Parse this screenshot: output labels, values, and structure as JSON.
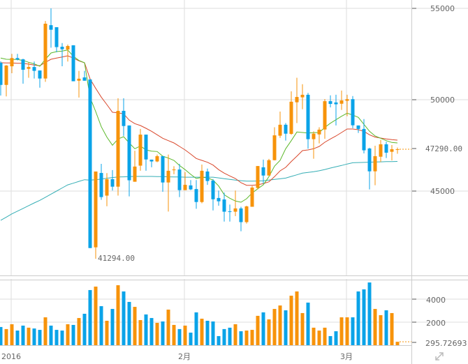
{
  "chart_data": [
    {
      "type": "candlestick",
      "colors": {
        "up": "#f7930a",
        "down": "#0aa3e8",
        "ma_short": "#5cb82a",
        "ma_mid": "#d9472b",
        "ma_long": "#35aeb5"
      },
      "ylim": [
        39000,
        55400
      ],
      "y_ticks": [
        "55000",
        "50000",
        "45000"
      ],
      "x_tick_labels": [
        {
          "index": 2,
          "label": "2016"
        },
        {
          "index": 33,
          "label": "2月"
        },
        {
          "index": 62,
          "label": "3月"
        }
      ],
      "grid": true,
      "last_price_label": "47290.00",
      "last_price": 47290,
      "min_label": "41294.00",
      "min_index": 17,
      "ohlc": [
        [
          52020,
          52100,
          50230,
          50810
        ],
        [
          50810,
          51900,
          50180,
          51870
        ],
        [
          51830,
          52510,
          51450,
          52280
        ],
        [
          52280,
          52510,
          52150,
          52200
        ],
        [
          52210,
          52240,
          50880,
          51640
        ],
        [
          51690,
          52050,
          51200,
          51790
        ],
        [
          51790,
          52090,
          51160,
          51580
        ],
        [
          51600,
          51600,
          50660,
          51160
        ],
        [
          51160,
          54310,
          50980,
          54160
        ],
        [
          54080,
          55000,
          52850,
          53830
        ],
        [
          53970,
          53970,
          52600,
          52880
        ],
        [
          52900,
          53100,
          51830,
          52760
        ],
        [
          52750,
          53020,
          52090,
          52940
        ],
        [
          52980,
          52980,
          51010,
          51010
        ],
        [
          51040,
          51580,
          50120,
          51150
        ],
        [
          51220,
          51580,
          51040,
          51040
        ],
        [
          51110,
          51110,
          41880,
          41880
        ],
        [
          41920,
          46070,
          41294,
          46070
        ],
        [
          45990,
          46490,
          44520,
          44670
        ],
        [
          44750,
          45980,
          44170,
          45650
        ],
        [
          45650,
          46150,
          45030,
          45240
        ],
        [
          45240,
          50080,
          44750,
          49390
        ],
        [
          49390,
          50080,
          48020,
          48560
        ],
        [
          48590,
          48590,
          44710,
          45590
        ],
        [
          45510,
          47210,
          45510,
          46340
        ],
        [
          46390,
          48400,
          46110,
          48090
        ],
        [
          48090,
          48090,
          46110,
          46730
        ],
        [
          46720,
          46720,
          46300,
          46620
        ],
        [
          46620,
          47000,
          46580,
          46910
        ],
        [
          46910,
          46910,
          44960,
          45470
        ],
        [
          45470,
          47000,
          43880,
          46110
        ],
        [
          46150,
          46360,
          45920,
          46180
        ],
        [
          46180,
          46490,
          44670,
          45050
        ],
        [
          45050,
          46040,
          45050,
          45340
        ],
        [
          45310,
          45600,
          45050,
          45090
        ],
        [
          45110,
          45600,
          44030,
          44400
        ],
        [
          44400,
          46450,
          44330,
          46110
        ],
        [
          46070,
          46230,
          45340,
          45550
        ],
        [
          45570,
          45660,
          43940,
          44550
        ],
        [
          44620,
          45030,
          44200,
          44440
        ],
        [
          44540,
          44920,
          43330,
          43870
        ],
        [
          43890,
          44260,
          43330,
          43870
        ],
        [
          43870,
          45030,
          43630,
          44050
        ],
        [
          44050,
          44140,
          42800,
          43300
        ],
        [
          43300,
          44200,
          43220,
          44160
        ],
        [
          44140,
          45280,
          44140,
          45190
        ],
        [
          45170,
          46370,
          45090,
          46370
        ],
        [
          46300,
          46720,
          45410,
          45850
        ],
        [
          45850,
          46760,
          45850,
          46690
        ],
        [
          46690,
          48490,
          46680,
          48050
        ],
        [
          48030,
          49350,
          47910,
          48630
        ],
        [
          48630,
          48720,
          47760,
          48140
        ],
        [
          48130,
          50460,
          48080,
          49890
        ],
        [
          49860,
          51200,
          48720,
          50150
        ],
        [
          50130,
          50850,
          49480,
          50270
        ],
        [
          50270,
          50370,
          47320,
          47840
        ],
        [
          47840,
          48270,
          46770,
          48140
        ],
        [
          48100,
          48490,
          47610,
          48360
        ],
        [
          48370,
          50040,
          47860,
          49920
        ],
        [
          49920,
          50240,
          49580,
          49770
        ],
        [
          49850,
          50270,
          48590,
          49750
        ],
        [
          49780,
          50500,
          49440,
          49960
        ],
        [
          49940,
          50270,
          49100,
          50030
        ],
        [
          50030,
          50200,
          48440,
          48600
        ],
        [
          48590,
          48590,
          48180,
          48400
        ],
        [
          48400,
          48940,
          47060,
          47230
        ],
        [
          47330,
          47370,
          45090,
          46080
        ],
        [
          46080,
          47480,
          45320,
          46910
        ],
        [
          46880,
          47800,
          46590,
          47560
        ],
        [
          47560,
          47700,
          46810,
          47100
        ],
        [
          47150,
          47520,
          46680,
          47290
        ],
        [
          47260,
          47380,
          47040,
          47290
        ]
      ],
      "ma_short": [
        52277,
        52214,
        52201,
        52201,
        52150,
        52049,
        51960,
        51832,
        52214,
        52557,
        52633,
        52659,
        52723,
        52379,
        52150,
        52023,
        50115,
        49351,
        48524,
        47952,
        47506,
        47850,
        47977,
        47633,
        47315,
        47468,
        47252,
        47188,
        47163,
        46908,
        46806,
        46679,
        46399,
        46170,
        45916,
        45687,
        45750,
        45725,
        45598,
        45280,
        44796,
        44605,
        44453,
        44389,
        44580,
        44898,
        45127,
        45343,
        45788,
        46361,
        46679,
        47315,
        47761,
        48231,
        48206,
        48180,
        48193,
        48206,
        48486,
        48715,
        48906,
        49097,
        49262,
        49160,
        49033,
        48651,
        48269,
        48015,
        47888,
        47761,
        47659,
        47634
      ],
      "ma_mid": [
        52023,
        52010,
        52010,
        51997,
        51997,
        51946,
        51896,
        51857,
        52049,
        52214,
        52277,
        52341,
        52405,
        52277,
        52125,
        52023,
        51132,
        50623,
        50140,
        49733,
        49313,
        49287,
        49224,
        48880,
        48689,
        48588,
        48435,
        48269,
        48079,
        47888,
        47761,
        47634,
        47443,
        47252,
        47023,
        46781,
        46679,
        46577,
        46425,
        46170,
        45980,
        45827,
        45687,
        45458,
        45318,
        45318,
        45343,
        45407,
        45509,
        45788,
        46107,
        46297,
        46616,
        46908,
        47213,
        47252,
        47315,
        47443,
        47672,
        47850,
        48015,
        48206,
        48397,
        48397,
        48358,
        48269,
        48079,
        47952,
        47901,
        47850,
        47812,
        47786
      ],
      "ma_long": [
        43400,
        43570,
        43750,
        43900,
        44050,
        44200,
        44350,
        44490,
        44660,
        44830,
        45000,
        45170,
        45340,
        45430,
        45530,
        45620,
        45600,
        45620,
        45660,
        45700,
        45740,
        45770,
        45780,
        45790,
        45800,
        45800,
        45800,
        45800,
        45790,
        45790,
        45780,
        45770,
        45770,
        45760,
        45760,
        45760,
        45760,
        45760,
        45760,
        45720,
        45680,
        45640,
        45600,
        45570,
        45540,
        45540,
        45550,
        45560,
        45600,
        45640,
        45670,
        45710,
        45800,
        45890,
        45980,
        46020,
        46060,
        46110,
        46180,
        46260,
        46330,
        46400,
        46480,
        46550,
        46560,
        46570,
        46580,
        46590,
        46600,
        46610,
        46615,
        46620
      ]
    },
    {
      "type": "bar",
      "y_ticks": [
        "4000",
        "2000"
      ],
      "ylim": [
        0,
        5500
      ],
      "last_volume_label": "295.72693",
      "values": [
        1580,
        1400,
        1820,
        1270,
        1700,
        1520,
        1450,
        1330,
        2420,
        1700,
        1330,
        1270,
        1820,
        1760,
        2360,
        2730,
        4790,
        5090,
        3390,
        2120,
        3150,
        5210,
        4670,
        3760,
        3330,
        2180,
        2670,
        2360,
        1940,
        2060,
        3090,
        1760,
        1400,
        1700,
        1090,
        2850,
        2300,
        2120,
        2060,
        790,
        1400,
        1520,
        1820,
        1210,
        1270,
        1330,
        2550,
        2850,
        2240,
        3150,
        3450,
        3030,
        4300,
        4670,
        2790,
        3700,
        1520,
        1270,
        1520,
        790,
        1210,
        2420,
        2420,
        2420,
        4670,
        4850,
        5450,
        3150,
        2610,
        3030,
        2790,
        296
      ]
    }
  ],
  "ui": {
    "expand_icon": "expand-arrows-icon"
  }
}
